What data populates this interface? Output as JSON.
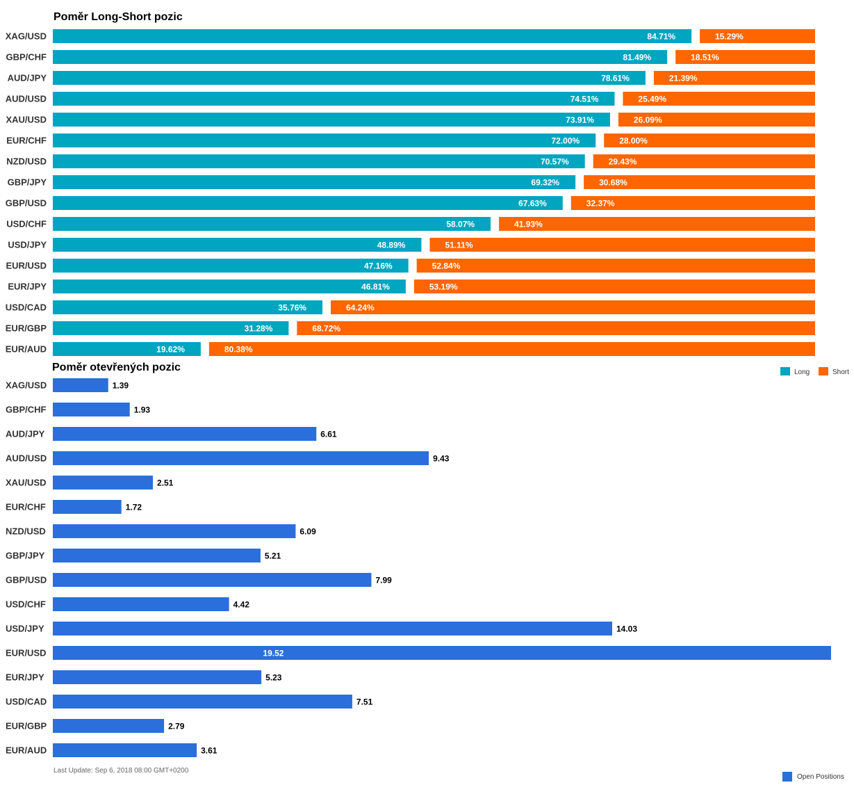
{
  "chart_data": [
    {
      "type": "bar",
      "stacked": true,
      "orientation": "horizontal",
      "title": "Poměr Long-Short pozic",
      "categories": [
        "XAG/USD",
        "GBP/CHF",
        "AUD/JPY",
        "AUD/USD",
        "XAU/USD",
        "EUR/CHF",
        "NZD/USD",
        "GBP/JPY",
        "GBP/USD",
        "USD/CHF",
        "USD/JPY",
        "EUR/USD",
        "EUR/JPY",
        "USD/CAD",
        "EUR/GBP",
        "EUR/AUD"
      ],
      "series": [
        {
          "name": "Long",
          "color": "#00a5c0",
          "values": [
            84.71,
            81.49,
            78.61,
            74.51,
            73.91,
            72.0,
            70.57,
            69.32,
            67.63,
            58.07,
            48.89,
            47.16,
            46.81,
            35.76,
            31.28,
            19.62
          ],
          "labels": [
            "84.71%",
            "81.49%",
            "78.61%",
            "74.51%",
            "73.91%",
            "72.00%",
            "70.57%",
            "69.32%",
            "67.63%",
            "58.07%",
            "48.89%",
            "47.16%",
            "46.81%",
            "35.76%",
            "31.28%",
            "19.62%"
          ]
        },
        {
          "name": "Short",
          "color": "#ff6600",
          "values": [
            15.29,
            18.51,
            21.39,
            25.49,
            26.09,
            28.0,
            29.43,
            30.68,
            32.37,
            41.93,
            51.11,
            52.84,
            53.19,
            64.24,
            68.72,
            80.38
          ],
          "labels": [
            "15.29%",
            "18.51%",
            "21.39%",
            "25.49%",
            "26.09%",
            "28.00%",
            "29.43%",
            "30.68%",
            "32.37%",
            "41.93%",
            "51.11%",
            "52.84%",
            "53.19%",
            "64.24%",
            "68.72%",
            "80.38%"
          ]
        }
      ],
      "xlim": [
        0,
        100
      ],
      "grid": false,
      "legend": "bottom-right"
    },
    {
      "type": "bar",
      "orientation": "horizontal",
      "title": "Poměr otevřených pozic",
      "categories": [
        "XAG/USD",
        "GBP/CHF",
        "AUD/JPY",
        "AUD/USD",
        "XAU/USD",
        "EUR/CHF",
        "NZD/USD",
        "GBP/JPY",
        "GBP/USD",
        "USD/CHF",
        "USD/JPY",
        "EUR/USD",
        "EUR/JPY",
        "USD/CAD",
        "EUR/GBP",
        "EUR/AUD"
      ],
      "series": [
        {
          "name": "Open Positions",
          "color": "#2a6fdb",
          "values": [
            1.39,
            1.93,
            6.61,
            9.43,
            2.51,
            1.72,
            6.09,
            5.21,
            7.99,
            4.42,
            14.03,
            19.52,
            5.23,
            7.51,
            2.79,
            3.61
          ],
          "labels": [
            "1.39",
            "1.93",
            "6.61",
            "9.43",
            "2.51",
            "1.72",
            "6.09",
            "5.21",
            "7.99",
            "4.42",
            "14.03",
            "19.52",
            "5.23",
            "7.51",
            "2.79",
            "3.61"
          ]
        }
      ],
      "xlim": [
        0,
        19.52
      ],
      "grid": false,
      "legend": "bottom-right"
    }
  ],
  "footer": {
    "last_update": "Last Update: Sep 6, 2018 08:00 GMT+0200"
  }
}
